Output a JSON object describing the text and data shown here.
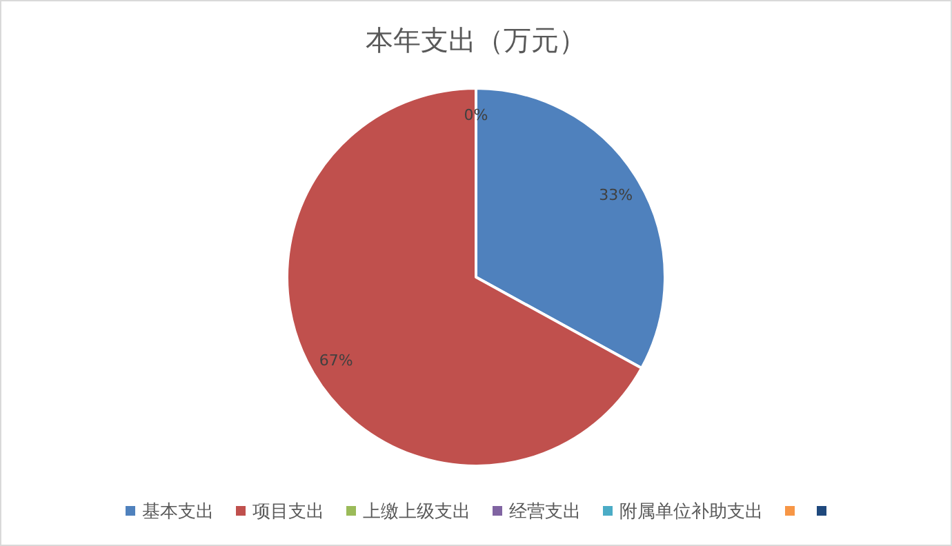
{
  "chart_data": {
    "type": "pie",
    "title": "本年支出（万元）",
    "categories": [
      "基本支出",
      "项目支出",
      "上缴上级支出",
      "经营支出",
      "附属单位补助支出",
      null,
      null
    ],
    "values": [
      33,
      67,
      0,
      0,
      0,
      0,
      0
    ],
    "colors": [
      "#4f81bd",
      "#c0504d",
      "#9bbb59",
      "#8064a2",
      "#4bacc6",
      "#f79646",
      "#1f497d"
    ],
    "value_labels": [
      "33%",
      "67%",
      "0%",
      null,
      null,
      null,
      null
    ],
    "legend": "bottom"
  }
}
